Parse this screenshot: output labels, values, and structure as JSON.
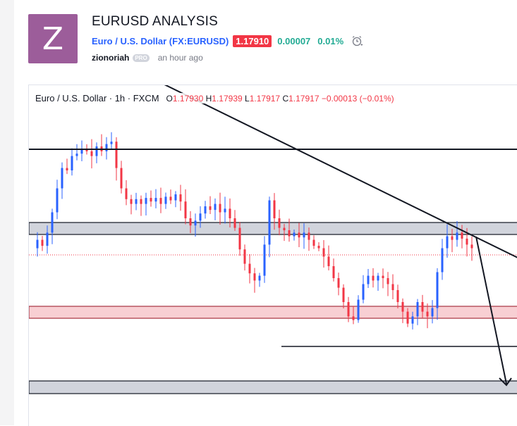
{
  "header": {
    "avatar_letter": "Z",
    "avatar_color": "#9c5d9a",
    "title": "EURUSD ANALYSIS",
    "symbol_link": "Euro / U.S. Dollar (FX:EURUSD)",
    "price": "1.17910",
    "price_badge_color": "#f23645",
    "change": "0.00007",
    "change_percent": "0.01%",
    "change_color": "#22ab94",
    "alarm_icon": "alarm-clock-icon",
    "author": "zionoriah",
    "author_badge": "PRO",
    "time_ago": "an hour ago"
  },
  "chart": {
    "legend": {
      "symbol": "Euro / U.S. Dollar · 1h · FXCM",
      "open_label": "O",
      "open": "1.17930",
      "high_label": "H",
      "high": "1.17939",
      "low_label": "L",
      "low": "1.17917",
      "close_label": "C",
      "close": "1.17917",
      "change": "−0.00013 (−0.01%)"
    },
    "colors": {
      "up": "#2962ff",
      "down": "#f23645",
      "zone_gray": "#d1d4dc",
      "zone_red": "#f8cfd3",
      "line": "#131722"
    }
  },
  "chart_data": {
    "type": "candlestick",
    "symbol": "Euro / U.S. Dollar",
    "interval": "1h",
    "source": "FXCM",
    "last_price": 1.1791,
    "close_path": [
      [
        0,
        0.05
      ],
      [
        1,
        0.12
      ],
      [
        2,
        0.07
      ],
      [
        3,
        0.18
      ],
      [
        4,
        0.35
      ],
      [
        5,
        0.55
      ],
      [
        6,
        0.72
      ],
      [
        7,
        0.7
      ],
      [
        8,
        0.82
      ],
      [
        9,
        0.84
      ],
      [
        10,
        0.88
      ],
      [
        11,
        0.86
      ],
      [
        12,
        0.82
      ],
      [
        13,
        0.9
      ],
      [
        14,
        0.86
      ],
      [
        15,
        0.92
      ],
      [
        16,
        0.94
      ],
      [
        17,
        0.72
      ],
      [
        18,
        0.55
      ],
      [
        19,
        0.46
      ],
      [
        20,
        0.42
      ],
      [
        21,
        0.46
      ],
      [
        22,
        0.42
      ],
      [
        23,
        0.47
      ],
      [
        24,
        0.44
      ],
      [
        25,
        0.47
      ],
      [
        26,
        0.42
      ],
      [
        27,
        0.48
      ],
      [
        28,
        0.45
      ],
      [
        29,
        0.5
      ],
      [
        30,
        0.44
      ],
      [
        31,
        0.3
      ],
      [
        32,
        0.24
      ],
      [
        33,
        0.28
      ],
      [
        34,
        0.34
      ],
      [
        35,
        0.4
      ],
      [
        36,
        0.37
      ],
      [
        37,
        0.42
      ],
      [
        38,
        0.35
      ],
      [
        39,
        0.38
      ],
      [
        40,
        0.3
      ],
      [
        41,
        0.22
      ],
      [
        42,
        0.04
      ],
      [
        43,
        -0.08
      ],
      [
        44,
        -0.16
      ],
      [
        45,
        -0.22
      ],
      [
        46,
        -0.18
      ],
      [
        47,
        0.08
      ],
      [
        48,
        0.45
      ],
      [
        49,
        0.3
      ],
      [
        50,
        0.22
      ],
      [
        51,
        0.2
      ],
      [
        52,
        0.15
      ],
      [
        53,
        0.18
      ],
      [
        54,
        0.14
      ],
      [
        55,
        0.18
      ],
      [
        56,
        0.12
      ],
      [
        57,
        0.07
      ],
      [
        58,
        0.05
      ],
      [
        59,
        -0.02
      ],
      [
        60,
        -0.1
      ],
      [
        61,
        -0.2
      ],
      [
        62,
        -0.28
      ],
      [
        63,
        -0.4
      ],
      [
        64,
        -0.52
      ],
      [
        65,
        -0.55
      ],
      [
        66,
        -0.38
      ],
      [
        67,
        -0.25
      ],
      [
        68,
        -0.18
      ],
      [
        69,
        -0.22
      ],
      [
        70,
        -0.18
      ],
      [
        71,
        -0.2
      ],
      [
        72,
        -0.25
      ],
      [
        73,
        -0.3
      ],
      [
        74,
        -0.4
      ],
      [
        75,
        -0.48
      ],
      [
        76,
        -0.58
      ],
      [
        77,
        -0.52
      ],
      [
        78,
        -0.4
      ],
      [
        79,
        -0.48
      ],
      [
        80,
        -0.52
      ],
      [
        81,
        -0.45
      ],
      [
        82,
        -0.15
      ],
      [
        83,
        0.05
      ],
      [
        84,
        0.15
      ],
      [
        85,
        0.12
      ],
      [
        86,
        0.18
      ],
      [
        87,
        0.13
      ],
      [
        88,
        0.08
      ],
      [
        89,
        0.05
      ]
    ],
    "horizontal_lines": [
      "resistance",
      "support-upper",
      "support-lower"
    ],
    "zones": [
      "gray-upper",
      "red-middle",
      "gray-lower"
    ],
    "trendlines": [
      "descending-trendline",
      "projection-arrow"
    ]
  }
}
